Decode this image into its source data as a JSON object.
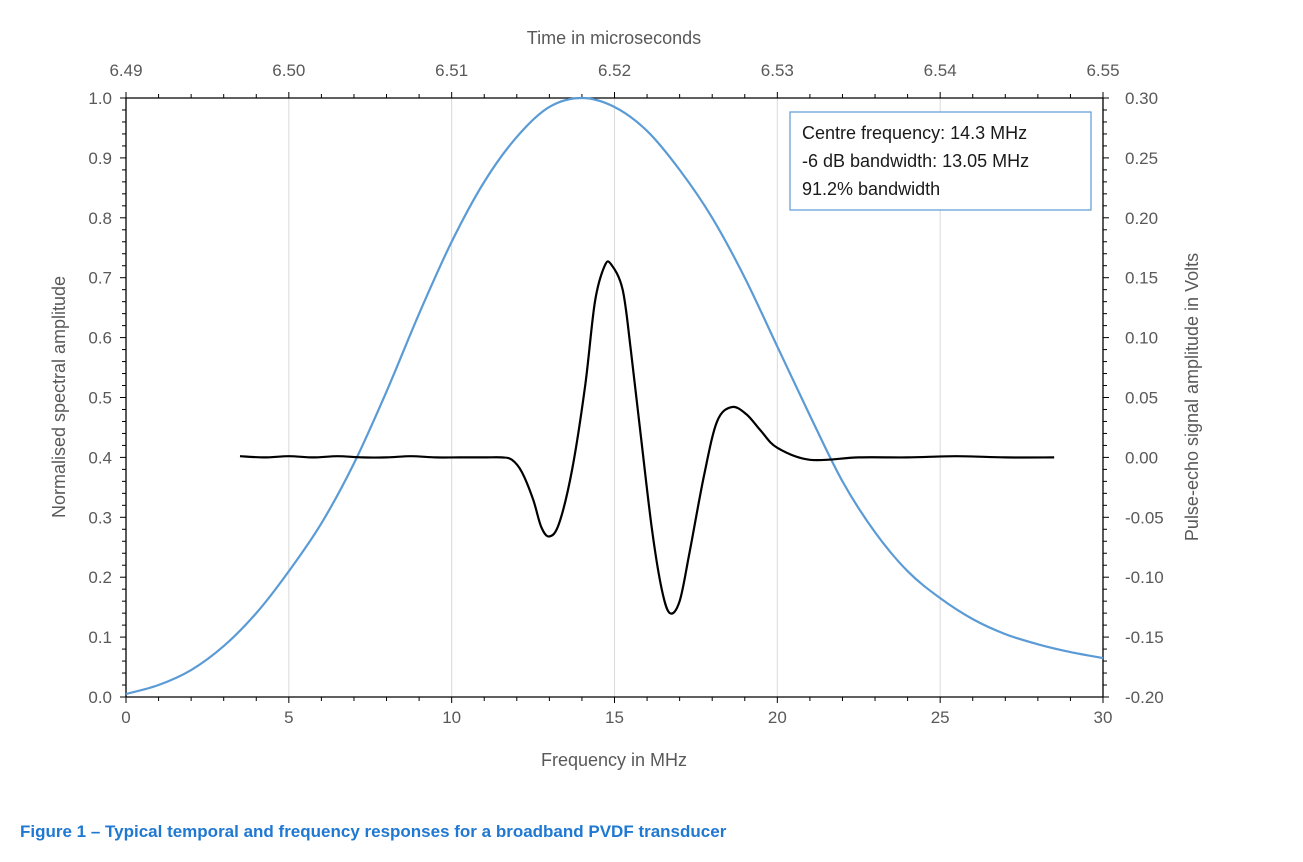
{
  "caption": "Figure 1 – Typical temporal and frequency responses for a broadband PVDF transducer",
  "annotation": {
    "lines": [
      "Centre frequency: 14.3 MHz",
      "-6 dB bandwidth: 13.05 MHz",
      "91.2% bandwidth"
    ]
  },
  "colors": {
    "spectrum": "#5b9bd5",
    "signal": "#000000",
    "grid": "#d9d9d9",
    "axis": "#000000",
    "text": "#595959",
    "caption": "#1f78d1"
  },
  "chart_data": {
    "type": "line",
    "title": "",
    "grid": "vertical",
    "legend": "none",
    "x_bottom": {
      "label": "Frequency in MHz",
      "range": [
        0,
        30
      ],
      "ticks": [
        0,
        5,
        10,
        15,
        20,
        25,
        30
      ],
      "tick_labels": [
        "0",
        "5",
        "10",
        "15",
        "20",
        "25",
        "30"
      ]
    },
    "x_top": {
      "label": "Time in microseconds",
      "range": [
        6.49,
        6.55
      ],
      "ticks": [
        6.49,
        6.5,
        6.51,
        6.52,
        6.53,
        6.54,
        6.55
      ],
      "tick_labels": [
        "6.49",
        "6.50",
        "6.51",
        "6.52",
        "6.53",
        "6.54",
        "6.55"
      ]
    },
    "y_left": {
      "label": "Normalised spectral amplitude",
      "range": [
        0,
        1
      ],
      "ticks": [
        0,
        0.1,
        0.2,
        0.3,
        0.4,
        0.5,
        0.6,
        0.7,
        0.8,
        0.9,
        1.0
      ],
      "tick_labels": [
        "0.0",
        "0.1",
        "0.2",
        "0.3",
        "0.4",
        "0.5",
        "0.6",
        "0.7",
        "0.8",
        "0.9",
        "1.0"
      ]
    },
    "y_right": {
      "label": "Pulse-echo signal amplitude in Volts",
      "range": [
        -0.2,
        0.3
      ],
      "ticks": [
        -0.2,
        -0.15,
        -0.1,
        -0.05,
        0,
        0.05,
        0.1,
        0.15,
        0.2,
        0.25,
        0.3
      ],
      "tick_labels": [
        "-0.20",
        "-0.15",
        "-0.10",
        "-0.05",
        "0.00",
        "0.05",
        "0.10",
        "0.15",
        "0.20",
        "0.25",
        "0.30"
      ]
    },
    "series": [
      {
        "axes": "bottom-left",
        "x": [
          0,
          1,
          2,
          3,
          4,
          5,
          6,
          7,
          8,
          9,
          10,
          11,
          12,
          13,
          14,
          15,
          16,
          17,
          18,
          19,
          20,
          21,
          22,
          23,
          24,
          25,
          26,
          27,
          28,
          29,
          30
        ],
        "y": [
          0.005,
          0.02,
          0.045,
          0.085,
          0.14,
          0.21,
          0.29,
          0.39,
          0.51,
          0.64,
          0.76,
          0.86,
          0.935,
          0.985,
          1.0,
          0.985,
          0.945,
          0.88,
          0.8,
          0.7,
          0.585,
          0.47,
          0.36,
          0.275,
          0.21,
          0.165,
          0.13,
          0.105,
          0.088,
          0.075,
          0.065
        ]
      },
      {
        "axes": "top-right",
        "x": [
          6.497,
          6.4985,
          6.5,
          6.5015,
          6.503,
          6.5045,
          6.506,
          6.5075,
          6.509,
          6.5105,
          6.512,
          6.5131,
          6.5137,
          6.5143,
          6.515,
          6.5155,
          6.516,
          6.5166,
          6.5174,
          6.5182,
          6.5188,
          6.5194,
          6.5198,
          6.5205,
          6.521,
          6.5216,
          6.5223,
          6.5229,
          6.5234,
          6.524,
          6.5246,
          6.5255,
          6.5263,
          6.5272,
          6.5281,
          6.529,
          6.53,
          6.532,
          6.535,
          6.538,
          6.541,
          6.544,
          6.547
        ],
        "y": [
          0.001,
          0.0,
          0.001,
          0.0,
          0.001,
          0.0,
          0.0,
          0.001,
          0.0,
          0.0,
          0.0,
          0.0,
          -0.002,
          -0.012,
          -0.035,
          -0.058,
          -0.066,
          -0.055,
          -0.01,
          0.06,
          0.13,
          0.16,
          0.161,
          0.14,
          0.09,
          0.02,
          -0.06,
          -0.11,
          -0.13,
          -0.12,
          -0.08,
          -0.015,
          0.03,
          0.042,
          0.036,
          0.022,
          0.008,
          -0.002,
          0.0,
          0.0,
          0.001,
          0.0,
          0.0
        ]
      }
    ]
  }
}
